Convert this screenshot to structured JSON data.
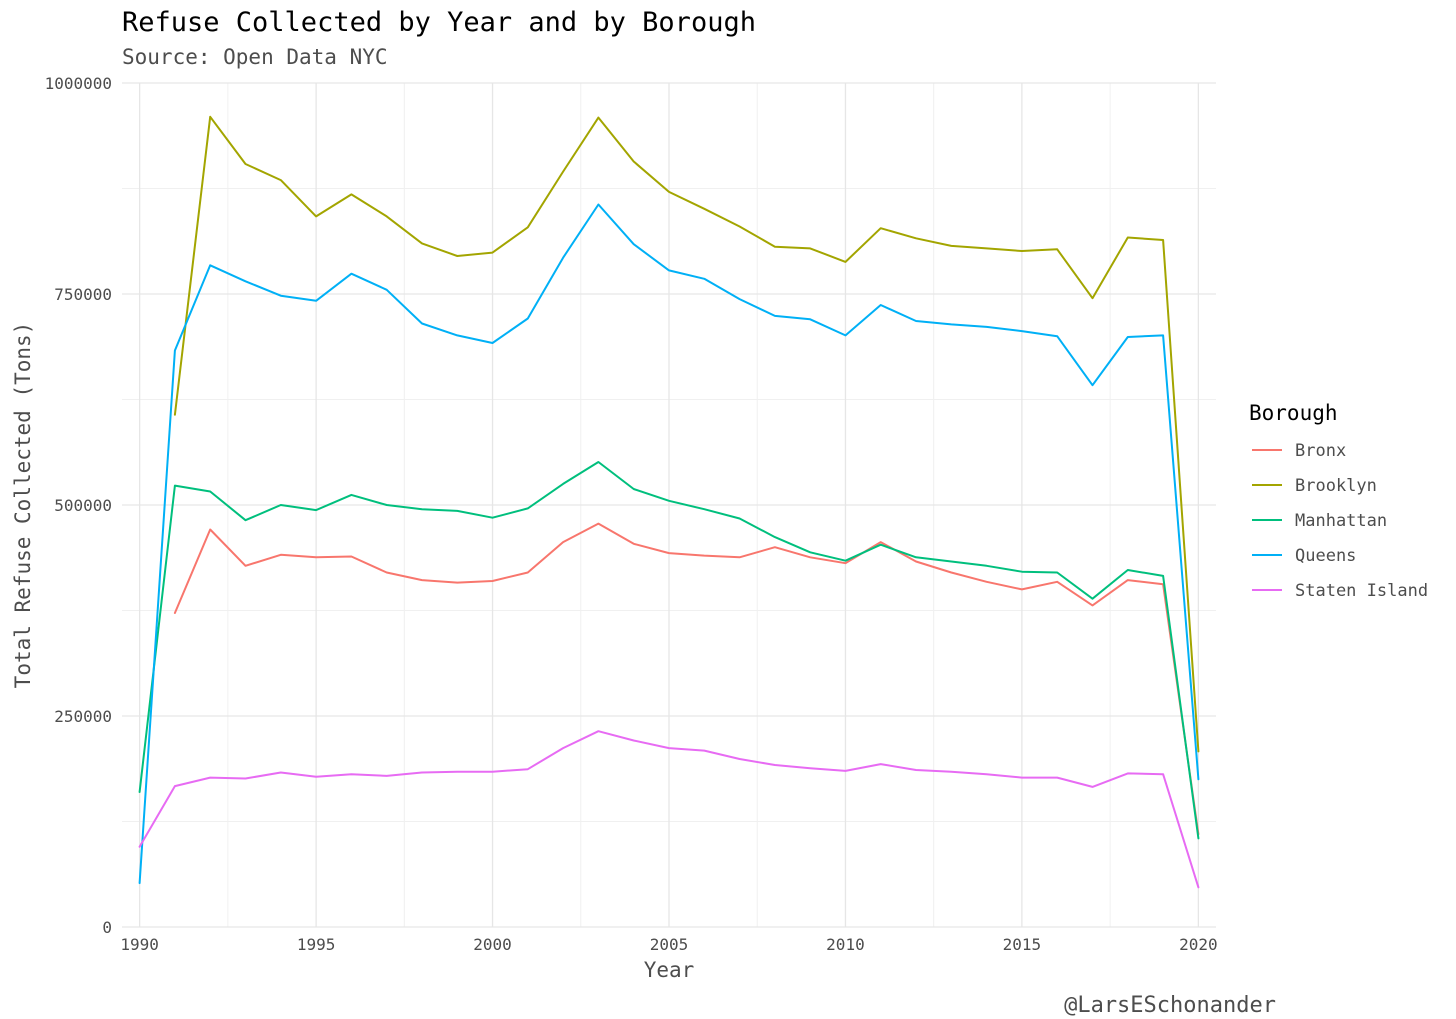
{
  "chart_data": {
    "type": "line",
    "title": "Refuse Collected by Year and by Borough",
    "subtitle": "Source: Open Data NYC",
    "xlabel": "Year",
    "ylabel": "Total Refuse Collected (Tons)",
    "caption": "@LarsESchonander",
    "xlim": [
      1989.5,
      2020.5
    ],
    "ylim": [
      0,
      1000000
    ],
    "x_ticks": [
      1990,
      1995,
      2000,
      2005,
      2010,
      2015,
      2020
    ],
    "y_ticks": [
      0,
      250000,
      500000,
      750000,
      1000000
    ],
    "x_tick_labels": [
      "1990",
      "1995",
      "2000",
      "2005",
      "2010",
      "2015",
      "2020"
    ],
    "y_tick_labels": [
      "0",
      "250000",
      "500000",
      "750000",
      "1000000"
    ],
    "grid": true,
    "legend": {
      "title": "Borough",
      "position": "right"
    },
    "series": [
      {
        "name": "Bronx",
        "color": "#F8766D",
        "x": [
          1991,
          1992,
          1993,
          1994,
          1995,
          1996,
          1997,
          1998,
          1999,
          2000,
          2001,
          2002,
          2003,
          2004,
          2005,
          2006,
          2007,
          2008,
          2009,
          2010,
          2011,
          2012,
          2013,
          2014,
          2015,
          2016,
          2017,
          2018,
          2019,
          2020
        ],
        "values": [
          372000,
          471000,
          428000,
          441000,
          438000,
          439000,
          420000,
          411000,
          408000,
          410000,
          420000,
          456000,
          478000,
          454000,
          443000,
          440000,
          438000,
          450000,
          438000,
          431000,
          456000,
          433000,
          420000,
          409000,
          400000,
          409000,
          381000,
          411000,
          406000,
          110000
        ]
      },
      {
        "name": "Brooklyn",
        "color": "#A3A500",
        "x": [
          1991,
          1992,
          1993,
          1994,
          1995,
          1996,
          1997,
          1998,
          1999,
          2000,
          2001,
          2002,
          2003,
          2004,
          2005,
          2006,
          2007,
          2008,
          2009,
          2010,
          2011,
          2012,
          2013,
          2014,
          2015,
          2016,
          2017,
          2018,
          2019,
          2020
        ],
        "values": [
          607000,
          960000,
          904000,
          885000,
          842000,
          868000,
          842000,
          810000,
          795000,
          799000,
          829000,
          895000,
          959000,
          907000,
          871000,
          851000,
          830000,
          806000,
          804000,
          788000,
          828000,
          816000,
          807000,
          804000,
          801000,
          803000,
          745000,
          817000,
          814000,
          208000
        ]
      },
      {
        "name": "Manhattan",
        "color": "#00BF7D",
        "x": [
          1990,
          1991,
          1992,
          1993,
          1994,
          1995,
          1996,
          1997,
          1998,
          1999,
          2000,
          2001,
          2002,
          2003,
          2004,
          2005,
          2006,
          2007,
          2008,
          2009,
          2010,
          2011,
          2012,
          2013,
          2014,
          2015,
          2016,
          2017,
          2018,
          2019,
          2020
        ],
        "values": [
          160000,
          523000,
          516000,
          482000,
          500000,
          494000,
          512000,
          500000,
          495000,
          493000,
          485000,
          496000,
          525000,
          551000,
          519000,
          505000,
          495000,
          484000,
          462000,
          444000,
          434000,
          453000,
          438000,
          433000,
          428000,
          421000,
          420000,
          389000,
          423000,
          416000,
          105000
        ]
      },
      {
        "name": "Queens",
        "color": "#00B0F6",
        "x": [
          1990,
          1991,
          1992,
          1993,
          1994,
          1995,
          1996,
          1997,
          1998,
          1999,
          2000,
          2001,
          2002,
          2003,
          2004,
          2005,
          2006,
          2007,
          2008,
          2009,
          2010,
          2011,
          2012,
          2013,
          2014,
          2015,
          2016,
          2017,
          2018,
          2019,
          2020
        ],
        "values": [
          52000,
          683000,
          784000,
          765000,
          748000,
          742000,
          774000,
          755000,
          715000,
          701000,
          692000,
          721000,
          793000,
          856000,
          809000,
          778000,
          768000,
          744000,
          724000,
          720000,
          701000,
          737000,
          718000,
          714000,
          711000,
          706000,
          700000,
          642000,
          699000,
          701000,
          175000
        ]
      },
      {
        "name": "Staten Island",
        "color": "#E76BF3",
        "x": [
          1990,
          1991,
          1992,
          1993,
          1994,
          1995,
          1996,
          1997,
          1998,
          1999,
          2000,
          2001,
          2002,
          2003,
          2004,
          2005,
          2006,
          2007,
          2008,
          2009,
          2010,
          2011,
          2012,
          2013,
          2014,
          2015,
          2016,
          2017,
          2018,
          2019,
          2020
        ],
        "values": [
          95000,
          167000,
          177000,
          176000,
          183000,
          178000,
          181000,
          179000,
          183000,
          184000,
          184000,
          187000,
          212000,
          232000,
          221000,
          212000,
          209000,
          199000,
          192000,
          188000,
          185000,
          193000,
          186000,
          184000,
          181000,
          177000,
          177000,
          166000,
          182000,
          181000,
          47000
        ]
      }
    ]
  }
}
